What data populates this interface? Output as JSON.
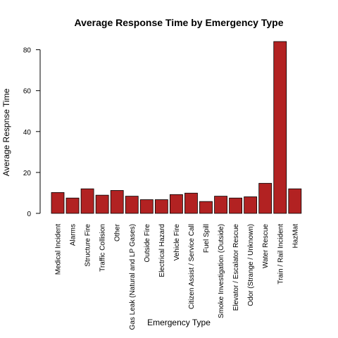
{
  "chart_data": {
    "type": "bar",
    "title": "Average Response Time by Emergency Type",
    "xlabel": "Emergency Type",
    "ylabel": "Average Respnse Time",
    "categories": [
      "Medical Incident",
      "Alarms",
      "Structure Fire",
      "Traffic Collision",
      "Other",
      "Gas Leak (Natural and LP Gases)",
      "Outside Fire",
      "Electrical Hazard",
      "Vehicle Fire",
      "Citizen Assist / Service Call",
      "Fuel Spill",
      "Smoke Investigation (Outside)",
      "Elevator / Escalator Rescue",
      "Odor (Strange / Unknown)",
      "Water Rescue",
      "Train / Rail Incident",
      "HazMat"
    ],
    "values": [
      10.2,
      7.5,
      12.0,
      8.9,
      11.2,
      8.4,
      6.7,
      6.7,
      9.2,
      9.9,
      5.8,
      8.4,
      7.5,
      8.1,
      14.7,
      84.0,
      12.0
    ],
    "ylim": [
      0,
      84
    ],
    "yticks": [
      0,
      20,
      40,
      60,
      80
    ],
    "grid": false,
    "bar_color": "#B22222"
  }
}
